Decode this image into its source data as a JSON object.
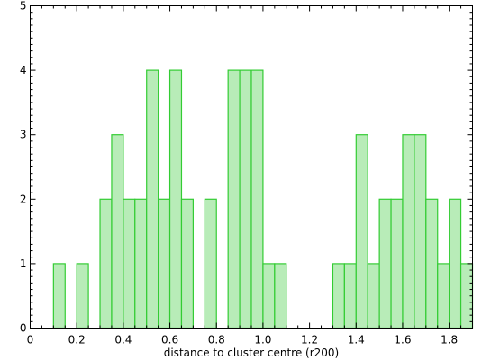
{
  "chart_data": {
    "type": "bar",
    "xlabel": "distance to cluster centre (r200)",
    "ylabel": "",
    "title": "",
    "bin_width": 0.05,
    "xlim": [
      0,
      1.9
    ],
    "ylim": [
      0,
      5
    ],
    "x_ticks": [
      "0",
      "0.2",
      "0.4",
      "0.6",
      "0.8",
      "1.0",
      "1.2",
      "1.4",
      "1.6",
      "1.8"
    ],
    "y_ticks": [
      "0",
      "1",
      "2",
      "3",
      "4",
      "5"
    ],
    "bins": [
      {
        "start": 0.1,
        "value": 1
      },
      {
        "start": 0.2,
        "value": 1
      },
      {
        "start": 0.3,
        "value": 2
      },
      {
        "start": 0.35,
        "value": 3
      },
      {
        "start": 0.4,
        "value": 2
      },
      {
        "start": 0.45,
        "value": 2
      },
      {
        "start": 0.5,
        "value": 4
      },
      {
        "start": 0.55,
        "value": 2
      },
      {
        "start": 0.6,
        "value": 4
      },
      {
        "start": 0.65,
        "value": 2
      },
      {
        "start": 0.75,
        "value": 2
      },
      {
        "start": 0.85,
        "value": 4
      },
      {
        "start": 0.9,
        "value": 4
      },
      {
        "start": 0.95,
        "value": 4
      },
      {
        "start": 1.0,
        "value": 1
      },
      {
        "start": 1.05,
        "value": 1
      },
      {
        "start": 1.3,
        "value": 1
      },
      {
        "start": 1.35,
        "value": 1
      },
      {
        "start": 1.4,
        "value": 3
      },
      {
        "start": 1.45,
        "value": 1
      },
      {
        "start": 1.5,
        "value": 2
      },
      {
        "start": 1.55,
        "value": 2
      },
      {
        "start": 1.6,
        "value": 3
      },
      {
        "start": 1.65,
        "value": 3
      },
      {
        "start": 1.7,
        "value": 2
      },
      {
        "start": 1.75,
        "value": 1
      },
      {
        "start": 1.8,
        "value": 2
      },
      {
        "start": 1.85,
        "value": 1
      }
    ],
    "colors": {
      "bar_fill": "#b8ecb8",
      "bar_stroke": "#33cc33"
    },
    "grid": false
  }
}
